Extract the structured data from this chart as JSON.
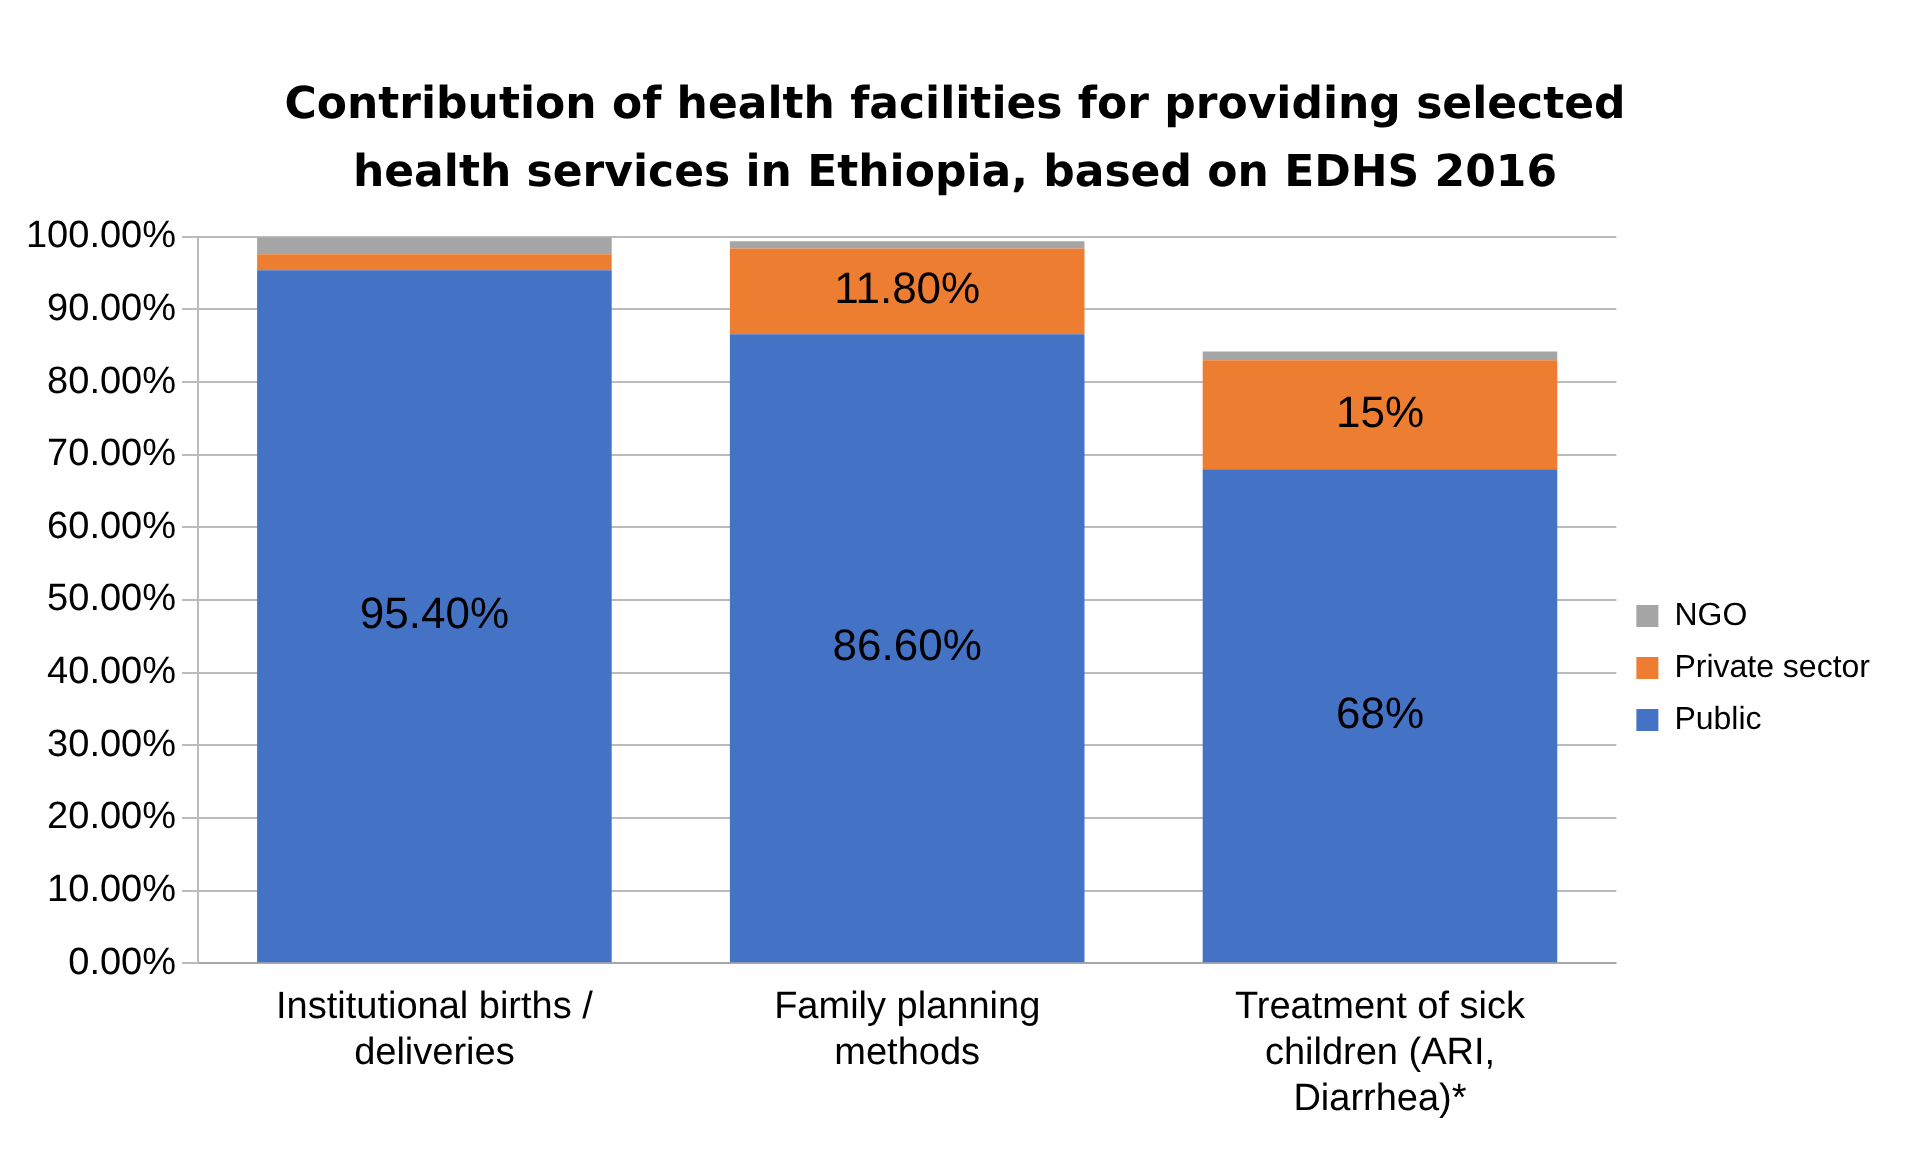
{
  "chart_data": {
    "type": "bar",
    "stacked": true,
    "title": "Contribution of health facilities for providing selected health services in Ethiopia, based on EDHS 2016",
    "categories": [
      "Institutional births / deliveries",
      "Family planning methods",
      "Treatment of sick children (ARI, Diarrhea)*"
    ],
    "series": [
      {
        "name": "Public",
        "color": "#4472c4",
        "values": [
          95.4,
          86.6,
          68
        ],
        "value_labels": [
          "95.40%",
          "86.60%",
          "68%"
        ]
      },
      {
        "name": "Private sector",
        "color": "#ed7d31",
        "values": [
          2.2,
          11.8,
          15
        ],
        "value_labels": [
          null,
          "11.80%",
          "15%"
        ]
      },
      {
        "name": "NGO",
        "color": "#a5a5a5",
        "values": [
          2.3,
          1,
          1.2
        ],
        "value_labels": [
          null,
          null,
          null
        ]
      }
    ],
    "ylim": [
      0,
      100
    ],
    "yticks": [
      {
        "value": 0,
        "label": "0.00%"
      },
      {
        "value": 10,
        "label": "10.00%"
      },
      {
        "value": 20,
        "label": "20.00%"
      },
      {
        "value": 30,
        "label": "30.00%"
      },
      {
        "value": 40,
        "label": "40.00%"
      },
      {
        "value": 50,
        "label": "50.00%"
      },
      {
        "value": 60,
        "label": "60.00%"
      },
      {
        "value": 70,
        "label": "70.00%"
      },
      {
        "value": 80,
        "label": "80.00%"
      },
      {
        "value": 90,
        "label": "90.00%"
      },
      {
        "value": 100,
        "label": "100.00%"
      }
    ],
    "grid": "y",
    "legend": "right"
  }
}
